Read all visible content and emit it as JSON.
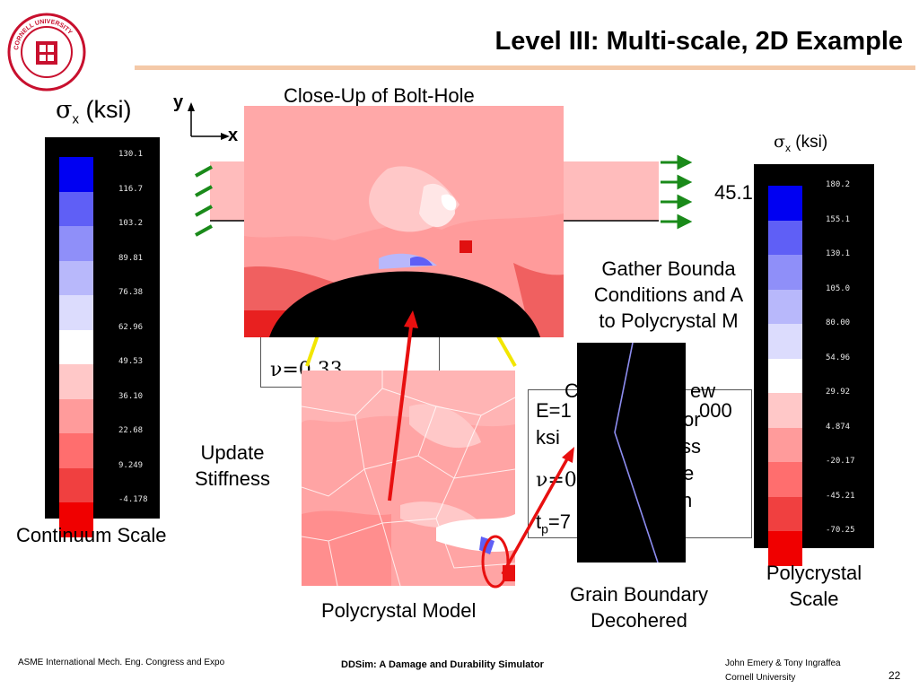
{
  "header": {
    "title": "Level III: Multi-scale, 2D Example",
    "logo_text": "CORNELL UNIVERSITY · FOUNDED A.D. 1865"
  },
  "axes": {
    "y": "y",
    "x": "x"
  },
  "continuum": {
    "legend_symbol": "σ",
    "legend_sub": "x",
    "legend_unit": "(ksi)",
    "ticks": [
      "130.1",
      "116.7",
      "103.2",
      "89.81",
      "76.38",
      "62.96",
      "49.53",
      "36.10",
      "22.68",
      "9.249",
      "-4.178"
    ],
    "colors": [
      "#0000f2",
      "#5f5ff6",
      "#8f8ff9",
      "#b8b8fb",
      "#dcdcfd",
      "#ffffff",
      "#ffc8c8",
      "#ff9b9b",
      "#ff6e6e",
      "#f04040",
      "#f00000"
    ],
    "caption": "Continuum Scale"
  },
  "polycrystal_scale": {
    "legend_symbol": "σ",
    "legend_sub": "x",
    "legend_unit": "(ksi)",
    "ticks": [
      "180.2",
      "155.1",
      "130.1",
      "105.0",
      "80.00",
      "54.96",
      "29.92",
      "4.874",
      "-20.17",
      "-45.21",
      "-70.25"
    ],
    "colors": [
      "#0000f2",
      "#5f5ff6",
      "#8f8ff9",
      "#b8b8fb",
      "#dcdcfd",
      "#ffffff",
      "#ffc8c8",
      "#ff9b9b",
      "#ff6e6e",
      "#f04040",
      "#f00000"
    ],
    "caption_line1": "Polycrystal",
    "caption_line2": "Scale"
  },
  "closeup": {
    "caption": "Close-Up of Bolt-Hole"
  },
  "load_partial": "45.1",
  "gather": {
    "line1": "Gather Bounda",
    "line2": "Conditions and A",
    "line3": "to Polycrystal M"
  },
  "props_left": {
    "nu": "ν=0.33"
  },
  "props_right": {
    "e_line": "E=1",
    "e_tail": "000",
    "ksi": "ksi",
    "nu": "ν=0.",
    "tp": "t",
    "tp_sub": "p",
    "tp_val": "=7"
  },
  "cohesive_partial": {
    "l1": "C",
    "l2": "ew",
    "l3": "or",
    "l4": "ss",
    "l5": "e",
    "l6": "n"
  },
  "update": {
    "line1": "Update",
    "line2": "Stiffness"
  },
  "polycrystal_model": {
    "caption": "Polycrystal Model"
  },
  "grain_boundary": {
    "line1": "Grain Boundary",
    "line2": "Decohered"
  },
  "footer": {
    "left": "ASME International Mech. Eng. Congress and Expo",
    "center": "DDSim: A Damage and Durability Simulator",
    "authors": "John Emery & Tony Ingraffea",
    "affiliation": "Cornell University",
    "page": "22"
  }
}
